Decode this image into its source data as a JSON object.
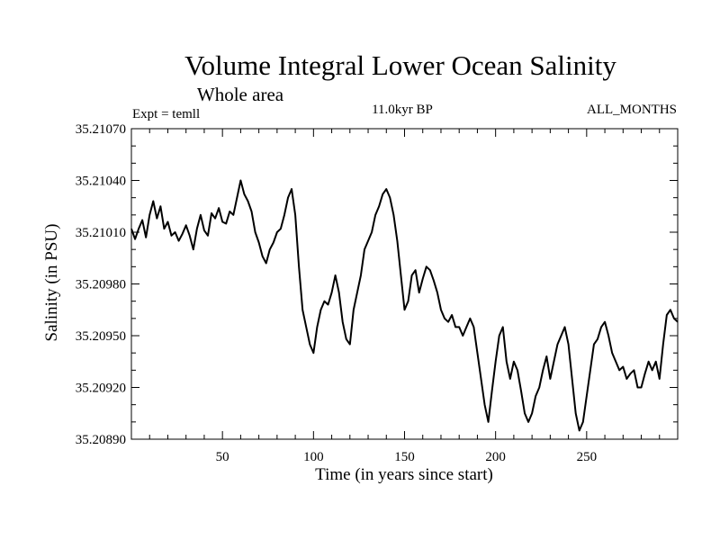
{
  "chart_data": {
    "type": "line",
    "title": "Volume Integral Lower Ocean Salinity",
    "subtitle": "Whole area",
    "annotations": {
      "left": "Expt = temll",
      "center": "11.0kyr BP",
      "right": "ALL_MONTHS"
    },
    "xlabel": "Time (in years since start)",
    "ylabel": "Salinity (in PSU)",
    "xlim": [
      0,
      300
    ],
    "ylim": [
      35.2089,
      35.2107
    ],
    "xticks": [
      50,
      100,
      150,
      200,
      250
    ],
    "yticks": [
      35.2089,
      35.2092,
      35.2095,
      35.2098,
      35.2101,
      35.2104,
      35.2107
    ],
    "ytick_labels": [
      "35.20890",
      "35.20920",
      "35.20950",
      "35.20980",
      "35.21010",
      "35.21040",
      "35.21070"
    ],
    "grid": false,
    "series": [
      {
        "name": "Salinity",
        "x": [
          0,
          2,
          4,
          6,
          8,
          10,
          12,
          14,
          16,
          18,
          20,
          22,
          24,
          26,
          28,
          30,
          32,
          34,
          36,
          38,
          40,
          42,
          44,
          46,
          48,
          50,
          52,
          54,
          56,
          58,
          60,
          62,
          64,
          66,
          68,
          70,
          72,
          74,
          76,
          78,
          80,
          82,
          84,
          86,
          88,
          90,
          92,
          94,
          96,
          98,
          100,
          102,
          104,
          106,
          108,
          110,
          112,
          114,
          116,
          118,
          120,
          122,
          124,
          126,
          128,
          130,
          132,
          134,
          136,
          138,
          140,
          142,
          144,
          146,
          148,
          150,
          152,
          154,
          156,
          158,
          160,
          162,
          164,
          166,
          168,
          170,
          172,
          174,
          176,
          178,
          180,
          182,
          184,
          186,
          188,
          190,
          192,
          194,
          196,
          198,
          200,
          202,
          204,
          206,
          208,
          210,
          212,
          214,
          216,
          218,
          220,
          222,
          224,
          226,
          228,
          230,
          232,
          234,
          236,
          238,
          240,
          242,
          244,
          246,
          248,
          250,
          252,
          254,
          256,
          258,
          260,
          262,
          264,
          266,
          268,
          270,
          272,
          274,
          276,
          278,
          280,
          282,
          284,
          286,
          288,
          290,
          292,
          294,
          296,
          298,
          300
        ],
        "values": [
          35.21012,
          35.21006,
          35.21012,
          35.21017,
          35.21007,
          35.2102,
          35.21028,
          35.21018,
          35.21025,
          35.21012,
          35.21016,
          35.21008,
          35.2101,
          35.21005,
          35.21009,
          35.21014,
          35.21008,
          35.21,
          35.21012,
          35.2102,
          35.21011,
          35.21008,
          35.21021,
          35.21018,
          35.21024,
          35.21016,
          35.21015,
          35.21022,
          35.2102,
          35.2103,
          35.2104,
          35.21032,
          35.21028,
          35.21022,
          35.2101,
          35.21004,
          35.20996,
          35.20992,
          35.21,
          35.21004,
          35.2101,
          35.21012,
          35.2102,
          35.2103,
          35.21035,
          35.2102,
          35.2099,
          35.20965,
          35.20955,
          35.20945,
          35.2094,
          35.20955,
          35.20965,
          35.2097,
          35.20968,
          35.20975,
          35.20985,
          35.20975,
          35.20958,
          35.20948,
          35.20945,
          35.20965,
          35.20975,
          35.20985,
          35.21,
          35.21005,
          35.2101,
          35.2102,
          35.21025,
          35.21032,
          35.21035,
          35.2103,
          35.2102,
          35.21005,
          35.20985,
          35.20965,
          35.2097,
          35.20985,
          35.20988,
          35.20975,
          35.20983,
          35.2099,
          35.20988,
          35.20982,
          35.20975,
          35.20965,
          35.2096,
          35.20958,
          35.20962,
          35.20955,
          35.20955,
          35.2095,
          35.20955,
          35.2096,
          35.20955,
          35.2094,
          35.20925,
          35.2091,
          35.209,
          35.20918,
          35.20935,
          35.2095,
          35.20955,
          35.20935,
          35.20925,
          35.20935,
          35.2093,
          35.20918,
          35.20905,
          35.209,
          35.20905,
          35.20915,
          35.2092,
          35.2093,
          35.20938,
          35.20925,
          35.20935,
          35.20945,
          35.2095,
          35.20955,
          35.20945,
          35.20925,
          35.20905,
          35.20895,
          35.209,
          35.20915,
          35.2093,
          35.20945,
          35.20948,
          35.20955,
          35.20958,
          35.2095,
          35.2094,
          35.20935,
          35.2093,
          35.20932,
          35.20925,
          35.20928,
          35.2093,
          35.2092,
          35.2092,
          35.20928,
          35.20935,
          35.2093,
          35.20935,
          35.20925,
          35.20945,
          35.20962,
          35.20965,
          35.2096,
          35.20958
        ]
      }
    ]
  }
}
